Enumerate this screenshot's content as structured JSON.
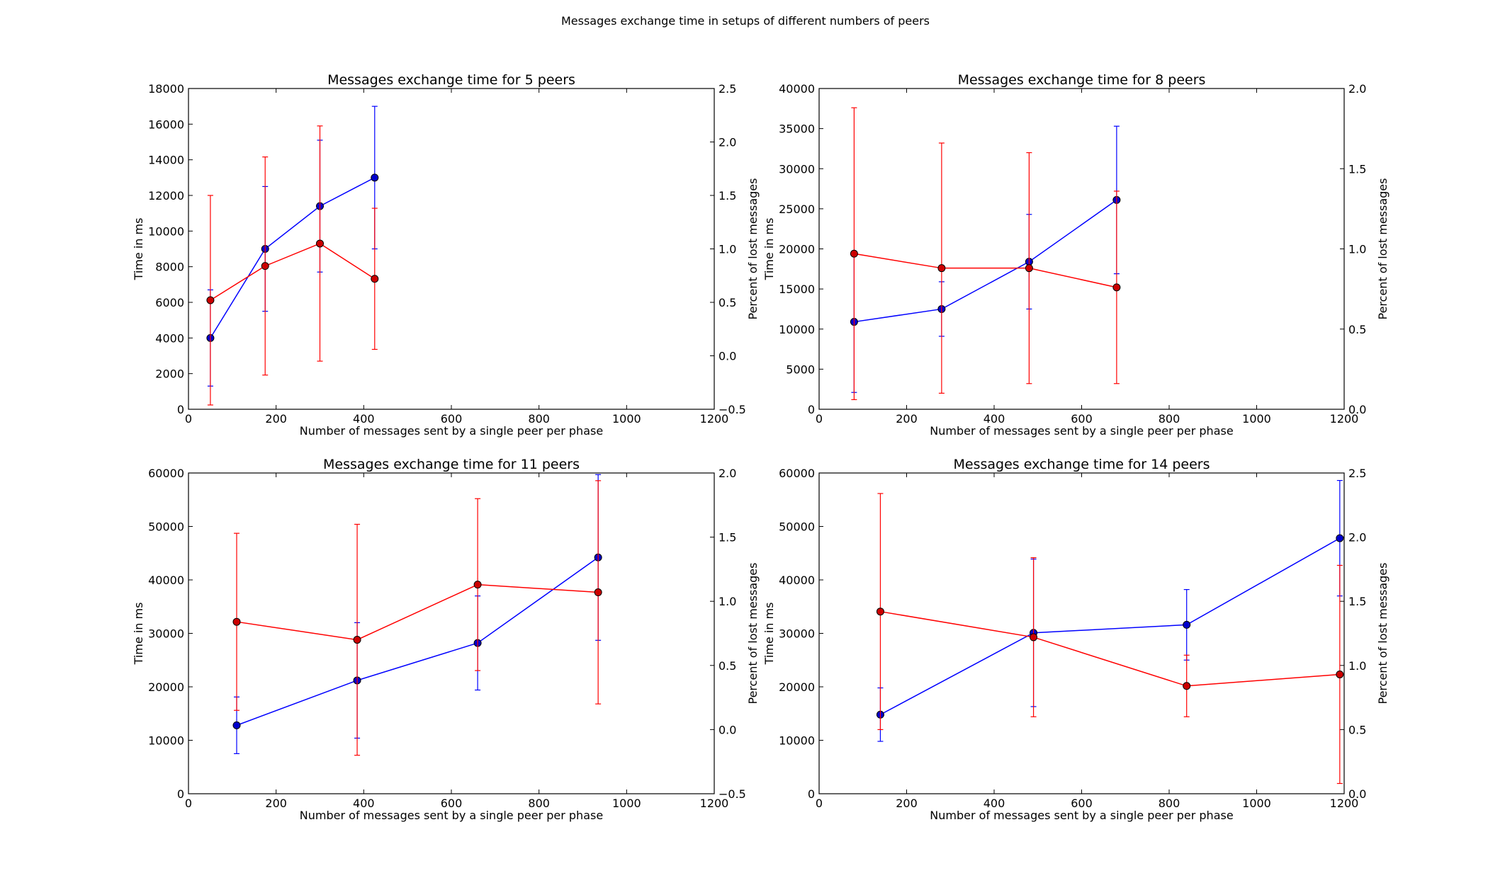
{
  "figure": {
    "suptitle": "Messages exchange time in setups of different numbers of peers"
  },
  "colors": {
    "time_series": "#0000ff",
    "loss_series": "#ff0000",
    "marker_fill_time": "#0000cc",
    "marker_fill_loss": "#cc0000"
  },
  "chart_data": [
    {
      "type": "line",
      "title": "Messages exchange time for 5 peers",
      "xlabel": "Number of messages sent by a single peer per phase",
      "ylabel": "Time in ms",
      "y2label": "Percent of lost messages",
      "xlim": [
        0,
        1200
      ],
      "ylim": [
        0,
        18000
      ],
      "y2lim": [
        -0.5,
        2.5
      ],
      "xticks": [
        0,
        200,
        400,
        600,
        800,
        1000,
        1200
      ],
      "yticks": [
        0,
        2000,
        4000,
        6000,
        8000,
        10000,
        12000,
        14000,
        16000,
        18000
      ],
      "y2ticks": [
        -0.5,
        0.0,
        0.5,
        1.0,
        1.5,
        2.0,
        2.5
      ],
      "y2ticklabels": [
        "−0.5",
        "0.0",
        "0.5",
        "1.0",
        "1.5",
        "2.0",
        "2.5"
      ],
      "grid": false,
      "series": [
        {
          "axis": "left",
          "color": "blue",
          "x": [
            50,
            175,
            300,
            425
          ],
          "y": [
            4000,
            9000,
            11400,
            13000
          ],
          "err": [
            2700,
            3500,
            3700,
            4000
          ]
        },
        {
          "axis": "right",
          "color": "red",
          "x": [
            50,
            175,
            300,
            425
          ],
          "y": [
            0.52,
            0.84,
            1.05,
            0.72
          ],
          "err": [
            0.98,
            1.02,
            1.1,
            0.66
          ]
        }
      ]
    },
    {
      "type": "line",
      "title": "Messages exchange time for 8 peers",
      "xlabel": "Number of messages sent by a single peer per phase",
      "ylabel": "Time in ms",
      "y2label": "Percent of lost messages",
      "xlim": [
        0,
        1200
      ],
      "ylim": [
        0,
        40000
      ],
      "y2lim": [
        0.0,
        2.0
      ],
      "xticks": [
        0,
        200,
        400,
        600,
        800,
        1000,
        1200
      ],
      "yticks": [
        0,
        5000,
        10000,
        15000,
        20000,
        25000,
        30000,
        35000,
        40000
      ],
      "y2ticks": [
        0.0,
        0.5,
        1.0,
        1.5,
        2.0
      ],
      "y2ticklabels": [
        "0.0",
        "0.5",
        "1.0",
        "1.5",
        "2.0"
      ],
      "grid": false,
      "series": [
        {
          "axis": "left",
          "color": "blue",
          "x": [
            80,
            280,
            480,
            680
          ],
          "y": [
            10900,
            12500,
            18400,
            26100
          ],
          "err": [
            8800,
            3400,
            5900,
            9200
          ]
        },
        {
          "axis": "right",
          "color": "red",
          "x": [
            80,
            280,
            480,
            680
          ],
          "y": [
            0.97,
            0.88,
            0.88,
            0.76
          ],
          "err": [
            0.91,
            0.78,
            0.72,
            0.6
          ]
        }
      ]
    },
    {
      "type": "line",
      "title": "Messages exchange time for 11 peers",
      "xlabel": "Number of messages sent by a single peer per phase",
      "ylabel": "Time in ms",
      "y2label": "Percent of lost messages",
      "xlim": [
        0,
        1200
      ],
      "ylim": [
        0,
        60000
      ],
      "y2lim": [
        -0.5,
        2.0
      ],
      "xticks": [
        0,
        200,
        400,
        600,
        800,
        1000,
        1200
      ],
      "yticks": [
        0,
        10000,
        20000,
        30000,
        40000,
        50000,
        60000
      ],
      "y2ticks": [
        -0.5,
        0.0,
        0.5,
        1.0,
        1.5,
        2.0
      ],
      "y2ticklabels": [
        "−0.5",
        "0.0",
        "0.5",
        "1.0",
        "1.5",
        "2.0"
      ],
      "grid": false,
      "series": [
        {
          "axis": "left",
          "color": "blue",
          "x": [
            110,
            385,
            660,
            935
          ],
          "y": [
            12800,
            21200,
            28200,
            44200
          ],
          "err": [
            5300,
            10800,
            8800,
            15500
          ]
        },
        {
          "axis": "right",
          "color": "red",
          "x": [
            110,
            385,
            660,
            935
          ],
          "y": [
            0.84,
            0.7,
            1.13,
            1.07
          ],
          "err": [
            0.69,
            0.9,
            0.67,
            0.87
          ]
        }
      ]
    },
    {
      "type": "line",
      "title": "Messages exchange time for 14 peers",
      "xlabel": "Number of messages sent by a single peer per phase",
      "ylabel": "Time in ms",
      "y2label": "Percent of lost messages",
      "xlim": [
        0,
        1200
      ],
      "ylim": [
        0,
        60000
      ],
      "y2lim": [
        0.0,
        2.5
      ],
      "xticks": [
        0,
        200,
        400,
        600,
        800,
        1000,
        1200
      ],
      "yticks": [
        0,
        10000,
        20000,
        30000,
        40000,
        50000,
        60000
      ],
      "y2ticks": [
        0.0,
        0.5,
        1.0,
        1.5,
        2.0,
        2.5
      ],
      "y2ticklabels": [
        "0.0",
        "0.5",
        "1.0",
        "1.5",
        "2.0",
        "2.5"
      ],
      "grid": false,
      "series": [
        {
          "axis": "left",
          "color": "blue",
          "x": [
            140,
            490,
            840,
            1190
          ],
          "y": [
            14800,
            30100,
            31600,
            47800
          ],
          "err": [
            5000,
            13800,
            6600,
            10800
          ]
        },
        {
          "axis": "right",
          "color": "red",
          "x": [
            140,
            490,
            840,
            1190
          ],
          "y": [
            1.42,
            1.22,
            0.84,
            0.93
          ],
          "err": [
            0.92,
            0.62,
            0.24,
            0.85
          ]
        }
      ]
    }
  ]
}
